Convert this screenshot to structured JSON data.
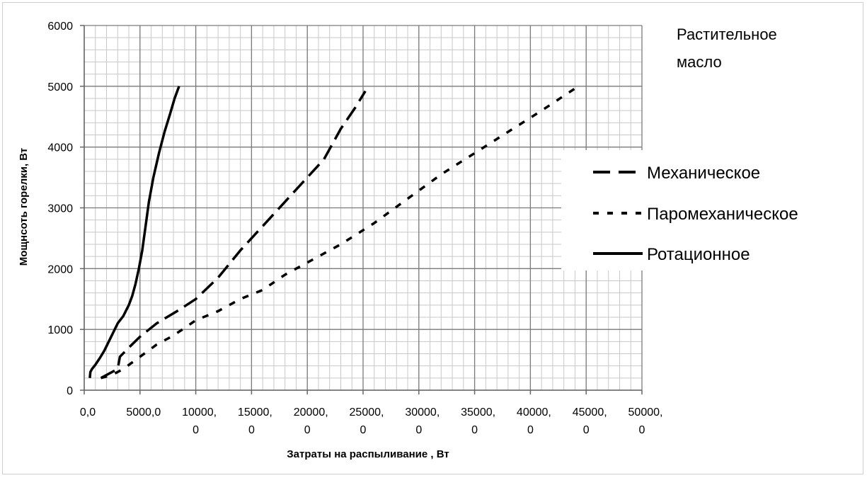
{
  "chart_data": {
    "type": "line",
    "title": "",
    "annotation": [
      "Растительное",
      "масло"
    ],
    "xlabel": "Затраты на распыливание , Вт",
    "ylabel": "Мощнсоть горелки, Вт",
    "xlim": [
      0,
      50000
    ],
    "ylim": [
      0,
      6000
    ],
    "x_ticks": [
      0,
      5000,
      10000,
      15000,
      20000,
      25000,
      30000,
      35000,
      40000,
      45000,
      50000
    ],
    "x_tick_labels": [
      [
        "0,0"
      ],
      [
        "5000,0"
      ],
      [
        "10000,",
        "0"
      ],
      [
        "15000,",
        "0"
      ],
      [
        "20000,",
        "0"
      ],
      [
        "25000,",
        "0"
      ],
      [
        "30000,",
        "0"
      ],
      [
        "35000,",
        "0"
      ],
      [
        "40000,",
        "0"
      ],
      [
        "45000,",
        "0"
      ],
      [
        "50000,",
        "0"
      ]
    ],
    "y_ticks": [
      0,
      1000,
      2000,
      3000,
      4000,
      5000,
      6000
    ],
    "y_tick_labels": [
      "0",
      "1000",
      "2000",
      "3000",
      "4000",
      "5000",
      "6000"
    ],
    "grid": true,
    "legend_position": "right",
    "series": [
      {
        "name": "Механическое",
        "style": "dashed",
        "color": "#000000",
        "x": [
          1500,
          2000,
          2500,
          3000,
          3200,
          4000,
          5000,
          6500,
          8500,
          10000,
          12000,
          14000,
          16000,
          18000,
          20000,
          21500,
          23000,
          24300,
          25200
        ],
        "y": [
          200,
          250,
          300,
          350,
          550,
          700,
          880,
          1100,
          1320,
          1500,
          1850,
          2300,
          2700,
          3100,
          3500,
          3800,
          4300,
          4650,
          4920
        ]
      },
      {
        "name": "Паромеханическое",
        "style": "dotted",
        "color": "#000000",
        "x": [
          1500,
          2500,
          3500,
          5000,
          6500,
          8000,
          10000,
          12000,
          14000,
          16000,
          18000,
          20000,
          23000,
          26000,
          29000,
          32000,
          35000,
          38000,
          41000,
          44300
        ],
        "y": [
          200,
          250,
          350,
          550,
          750,
          900,
          1150,
          1300,
          1500,
          1650,
          1900,
          2100,
          2400,
          2750,
          3150,
          3550,
          3900,
          4250,
          4600,
          5000
        ]
      },
      {
        "name": "Ротационное",
        "style": "solid",
        "color": "#000000",
        "x": [
          500,
          550,
          700,
          1000,
          1400,
          1800,
          2200,
          2600,
          3000,
          3500,
          4000,
          4300,
          4600,
          4900,
          5200,
          5500,
          5800,
          6200,
          6700,
          7200,
          7700,
          8100,
          8500
        ],
        "y": [
          200,
          300,
          350,
          420,
          530,
          650,
          800,
          950,
          1100,
          1220,
          1400,
          1550,
          1750,
          2000,
          2300,
          2700,
          3100,
          3500,
          3900,
          4250,
          4550,
          4800,
          5000
        ]
      }
    ]
  }
}
